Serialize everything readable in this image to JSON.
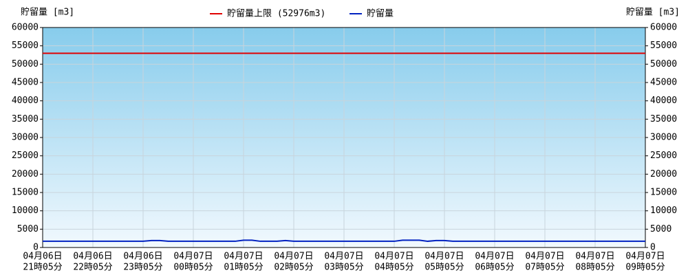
{
  "chart_data": {
    "type": "line",
    "y_label": "貯留量 [m3]",
    "y2_label": "貯留量 [m3]",
    "categories": [
      [
        "04月06日",
        "21時05分"
      ],
      null,
      null,
      null,
      null,
      null,
      [
        "04月06日",
        "22時05分"
      ],
      null,
      null,
      null,
      null,
      null,
      [
        "04月06日",
        "23時05分"
      ],
      null,
      null,
      null,
      null,
      null,
      [
        "04月07日",
        "00時05分"
      ],
      null,
      null,
      null,
      null,
      null,
      [
        "04月07日",
        "01時05分"
      ],
      null,
      null,
      null,
      null,
      null,
      [
        "04月07日",
        "02時05分"
      ],
      null,
      null,
      null,
      null,
      null,
      [
        "04月07日",
        "03時05分"
      ],
      null,
      null,
      null,
      null,
      null,
      [
        "04月07日",
        "04時05分"
      ],
      null,
      null,
      null,
      null,
      null,
      [
        "04月07日",
        "05時05分"
      ],
      null,
      null,
      null,
      null,
      null,
      [
        "04月07日",
        "06時05分"
      ],
      null,
      null,
      null,
      null,
      null,
      [
        "04月07日",
        "07時05分"
      ],
      null,
      null,
      null,
      null,
      null,
      [
        "04月07日",
        "08時05分"
      ],
      null,
      null,
      null,
      null,
      null,
      [
        "04月07日",
        "09時05分"
      ]
    ],
    "series": [
      {
        "name": "貯留量上限 (52976m3)",
        "color": "#e00000",
        "values": [
          52976,
          52976,
          52976,
          52976,
          52976,
          52976,
          52976,
          52976,
          52976,
          52976,
          52976,
          52976,
          52976,
          52976,
          52976,
          52976,
          52976,
          52976,
          52976,
          52976,
          52976,
          52976,
          52976,
          52976,
          52976,
          52976,
          52976,
          52976,
          52976,
          52976,
          52976,
          52976,
          52976,
          52976,
          52976,
          52976,
          52976,
          52976,
          52976,
          52976,
          52976,
          52976,
          52976,
          52976,
          52976,
          52976,
          52976,
          52976,
          52976,
          52976,
          52976,
          52976,
          52976,
          52976,
          52976,
          52976,
          52976,
          52976,
          52976,
          52976,
          52976,
          52976,
          52976,
          52976,
          52976,
          52976,
          52976,
          52976,
          52976,
          52976,
          52976,
          52976,
          52976
        ]
      },
      {
        "name": "貯留量",
        "color": "#0020c0",
        "values": [
          1700,
          1700,
          1700,
          1700,
          1700,
          1700,
          1700,
          1700,
          1700,
          1700,
          1700,
          1700,
          1700,
          1900,
          1900,
          1700,
          1700,
          1700,
          1700,
          1700,
          1700,
          1700,
          1700,
          1700,
          2000,
          2000,
          1700,
          1700,
          1700,
          1900,
          1700,
          1700,
          1700,
          1700,
          1700,
          1700,
          1700,
          1700,
          1700,
          1700,
          1700,
          1700,
          1700,
          2000,
          2000,
          2000,
          1700,
          1900,
          1900,
          1700,
          1700,
          1700,
          1700,
          1700,
          1700,
          1700,
          1700,
          1700,
          1700,
          1700,
          1700,
          1700,
          1700,
          1700,
          1700,
          1700,
          1700,
          1700,
          1700,
          1700,
          1700,
          1700,
          1700
        ]
      }
    ],
    "ylim": [
      0,
      60000
    ],
    "yticks": [
      0,
      5000,
      10000,
      15000,
      20000,
      25000,
      30000,
      35000,
      40000,
      45000,
      50000,
      55000,
      60000
    ],
    "y2lim": [
      0,
      60000
    ],
    "y2ticks": [
      0,
      5000,
      10000,
      15000,
      20000,
      25000,
      30000,
      35000,
      40000,
      45000,
      50000,
      55000,
      60000
    ],
    "grid": true
  }
}
